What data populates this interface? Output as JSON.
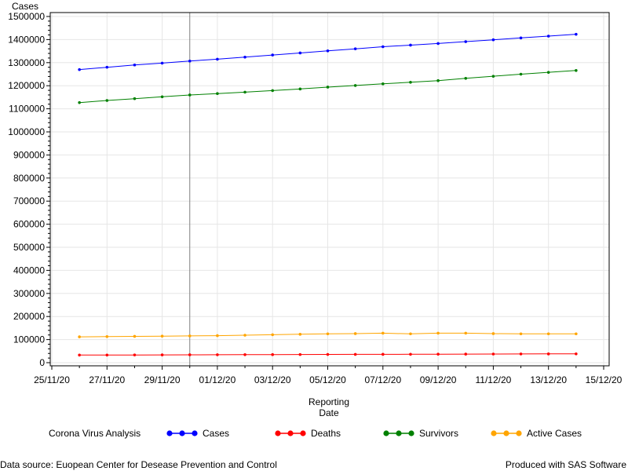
{
  "chart_data": {
    "type": "line",
    "ylabel": "Cases",
    "xlabel_lines": [
      "Reporting",
      "Date"
    ],
    "ylim": [
      0,
      1500000
    ],
    "y_ticks": [
      0,
      100000,
      200000,
      300000,
      400000,
      500000,
      600000,
      700000,
      800000,
      900000,
      1000000,
      1100000,
      1200000,
      1300000,
      1400000,
      1500000
    ],
    "x_ticks": [
      "25/11/20",
      "27/11/20",
      "29/11/20",
      "01/12/20",
      "03/12/20",
      "05/12/20",
      "07/12/20",
      "09/12/20",
      "11/12/20",
      "13/12/20",
      "15/12/20"
    ],
    "x": [
      "26/11/20",
      "27/11/20",
      "28/11/20",
      "29/11/20",
      "30/11/20",
      "01/12/20",
      "02/12/20",
      "03/12/20",
      "04/12/20",
      "05/12/20",
      "06/12/20",
      "07/12/20",
      "08/12/20",
      "09/12/20",
      "10/12/20",
      "11/12/20",
      "12/12/20",
      "13/12/20",
      "14/12/20"
    ],
    "reference_line": "30/11/20",
    "grid": true,
    "legend_title": "Corona Virus Analysis",
    "legend_position": "bottom",
    "series": [
      {
        "name": "Cases",
        "color": "#0000ff",
        "values": [
          1270000,
          1280000,
          1290000,
          1298000,
          1307000,
          1315000,
          1324000,
          1333000,
          1342000,
          1351000,
          1360000,
          1369000,
          1376000,
          1383000,
          1391000,
          1399000,
          1407000,
          1415000,
          1423000
        ]
      },
      {
        "name": "Deaths",
        "color": "#ff0000",
        "values": [
          33000,
          33200,
          33500,
          33800,
          34100,
          34400,
          34700,
          35000,
          35300,
          35600,
          35900,
          36200,
          36500,
          36800,
          37100,
          37400,
          37700,
          38000,
          38300
        ]
      },
      {
        "name": "Survivors",
        "color": "#008000",
        "values": [
          1127000,
          1136000,
          1144000,
          1152000,
          1160000,
          1166000,
          1172000,
          1179000,
          1186000,
          1194000,
          1201000,
          1208000,
          1215000,
          1222000,
          1232000,
          1241000,
          1250000,
          1258000,
          1266000
        ]
      },
      {
        "name": "Active Cases",
        "color": "#ffa500",
        "values": [
          112000,
          113000,
          114000,
          115000,
          116000,
          117000,
          119000,
          121000,
          123000,
          125000,
          126000,
          128000,
          125000,
          128000,
          128000,
          126000,
          125000,
          125000,
          125000
        ]
      }
    ]
  },
  "footer": {
    "source": "Data source: Euopean Center for Desease Prevention and Control",
    "produced": "Produced with SAS Software"
  }
}
